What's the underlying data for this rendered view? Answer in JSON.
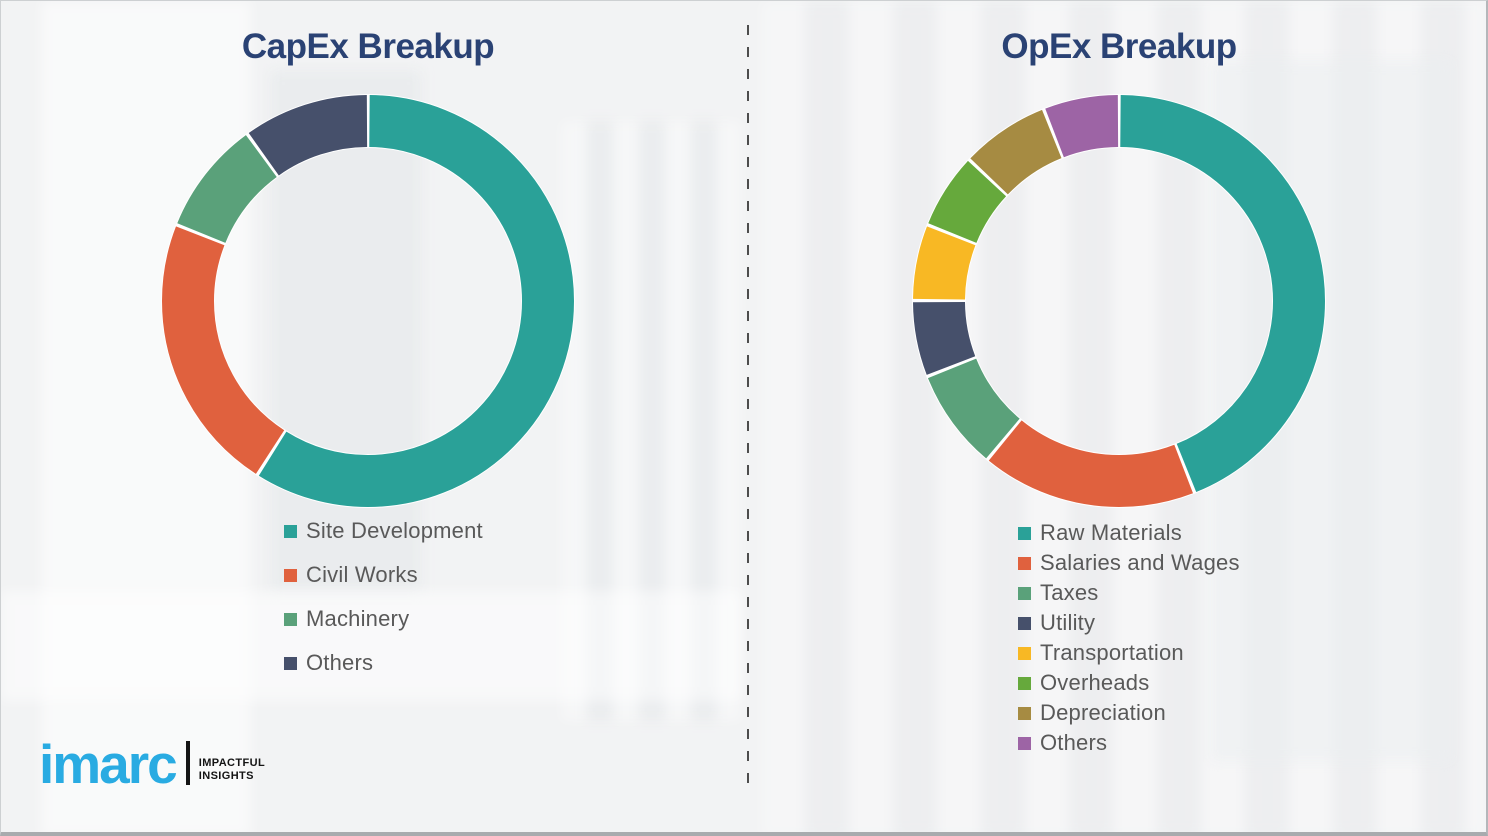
{
  "page": {
    "background_color": "#f2f3f4",
    "border_color": "#a8abae",
    "divider_color": "#4d4d4d",
    "title_color": "#2A4274",
    "legend_text_color": "#595959"
  },
  "chart_data": [
    {
      "type": "pie",
      "donut": true,
      "title": "CapEx Breakup",
      "legend_position": "below-left",
      "start_angle_deg": 0,
      "segments": [
        {
          "label": "Site Development",
          "value": 59,
          "color": "#2AA198"
        },
        {
          "label": "Civil Works",
          "value": 22,
          "color": "#E0613E"
        },
        {
          "label": "Machinery",
          "value": 9,
          "color": "#5AA17A"
        },
        {
          "label": "Others",
          "value": 10,
          "color": "#46506B"
        }
      ]
    },
    {
      "type": "pie",
      "donut": true,
      "title": "OpEx Breakup",
      "legend_position": "below-left",
      "start_angle_deg": 0,
      "segments": [
        {
          "label": "Raw Materials",
          "value": 44,
          "color": "#2AA198"
        },
        {
          "label": "Salaries and Wages",
          "value": 17,
          "color": "#E0613E"
        },
        {
          "label": "Taxes",
          "value": 8,
          "color": "#5AA17A"
        },
        {
          "label": "Utility",
          "value": 6,
          "color": "#46506B"
        },
        {
          "label": "Transportation",
          "value": 6,
          "color": "#F8B824"
        },
        {
          "label": "Overheads",
          "value": 6,
          "color": "#66A93C"
        },
        {
          "label": "Depreciation",
          "value": 7,
          "color": "#A68B42"
        },
        {
          "label": "Others",
          "value": 6,
          "color": "#9D64A5"
        }
      ]
    }
  ],
  "logo": {
    "brand": "imarc",
    "brand_color": "#29ABE2",
    "tagline_line1": "IMPACTFUL",
    "tagline_line2": "INSIGHTS"
  }
}
